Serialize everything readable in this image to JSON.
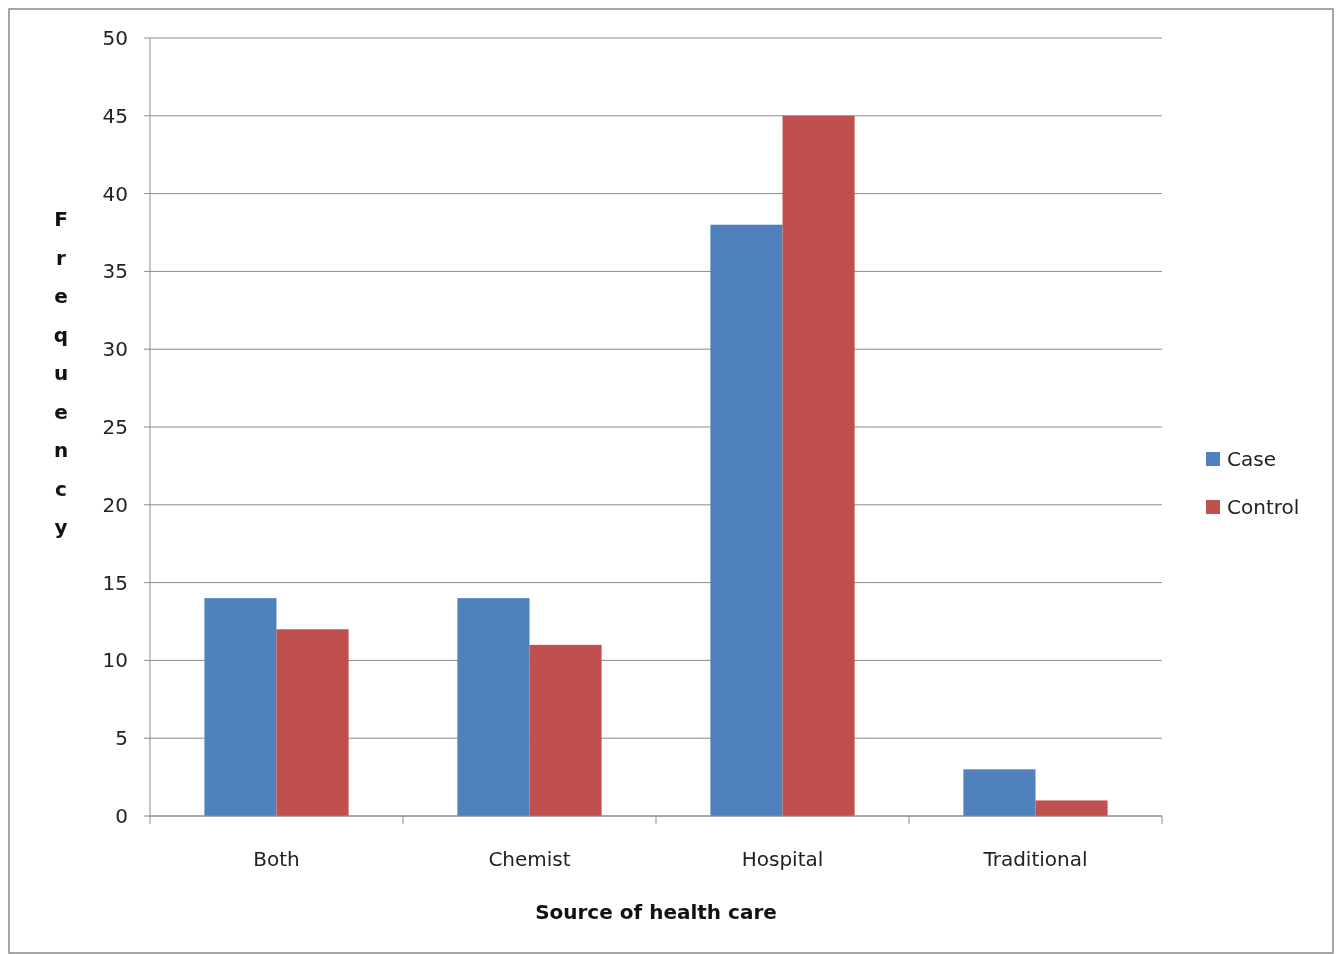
{
  "chart_data": {
    "type": "bar",
    "xlabel": "Source of health care",
    "ylabel": "Frequency",
    "categories": [
      "Both",
      "Chemist",
      "Hospital",
      "Traditional"
    ],
    "series": [
      {
        "name": "Case",
        "color": "#4f81bd",
        "values": [
          14,
          14,
          38,
          3
        ]
      },
      {
        "name": "Control",
        "color": "#c0504d",
        "values": [
          12,
          11,
          45,
          1
        ]
      }
    ],
    "ylim": [
      0,
      50
    ],
    "yticks": [
      0,
      5,
      10,
      15,
      20,
      25,
      30,
      35,
      40,
      45,
      50
    ],
    "grid": "y",
    "legend": "right"
  }
}
